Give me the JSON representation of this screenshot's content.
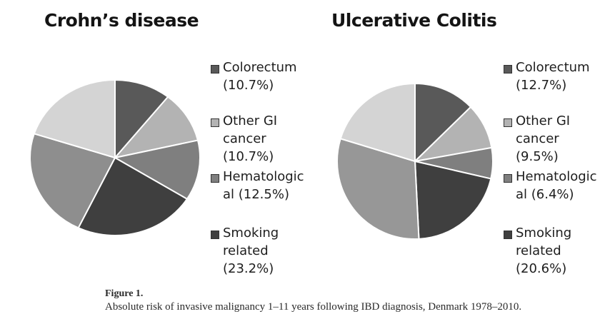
{
  "chart_data": [
    {
      "type": "pie",
      "title": "Crohn’s disease",
      "slices": [
        {
          "label": "Colorectum",
          "value": 10.7,
          "legend": "Colorectum\n(10.7%)",
          "color": "#595959"
        },
        {
          "label": "Other GI cancer",
          "value": 10.7,
          "legend": "Other GI\ncancer\n(10.7%)",
          "color": "#b3b3b3"
        },
        {
          "label": "Hematological",
          "value": 12.5,
          "legend": "Hematologic\nal (12.5%)",
          "color": "#7f7f7f"
        },
        {
          "label": "Smoking related",
          "value": 23.2,
          "legend": "Smoking\nrelated\n(23.2%)",
          "color": "#3f3f3f"
        },
        {
          "label": "",
          "value": 22.9,
          "legend": "",
          "color": "#8e8e8e"
        },
        {
          "label": "",
          "value": 20.0,
          "legend": "",
          "color": "#d4d4d4"
        }
      ]
    },
    {
      "type": "pie",
      "title": "Ulcerative Colitis",
      "slices": [
        {
          "label": "Colorectum",
          "value": 12.7,
          "legend": "Colorectum\n(12.7%)",
          "color": "#595959"
        },
        {
          "label": "Other GI cancer",
          "value": 9.5,
          "legend": "Other GI\ncancer\n(9.5%)",
          "color": "#b3b3b3"
        },
        {
          "label": "Hematological",
          "value": 6.4,
          "legend": "Hematologic\nal (6.4%)",
          "color": "#7f7f7f"
        },
        {
          "label": "Smoking related",
          "value": 20.6,
          "legend": "Smoking\nrelated\n(20.6%)",
          "color": "#3f3f3f"
        },
        {
          "label": "",
          "value": 30.5,
          "legend": "",
          "color": "#979797"
        },
        {
          "label": "",
          "value": 20.3,
          "legend": "",
          "color": "#d4d4d4"
        }
      ]
    }
  ],
  "caption": {
    "label": "Figure 1.",
    "text": "Absolute risk of invasive malignancy 1–11 years following IBD diagnosis, Denmark 1978–2010."
  }
}
